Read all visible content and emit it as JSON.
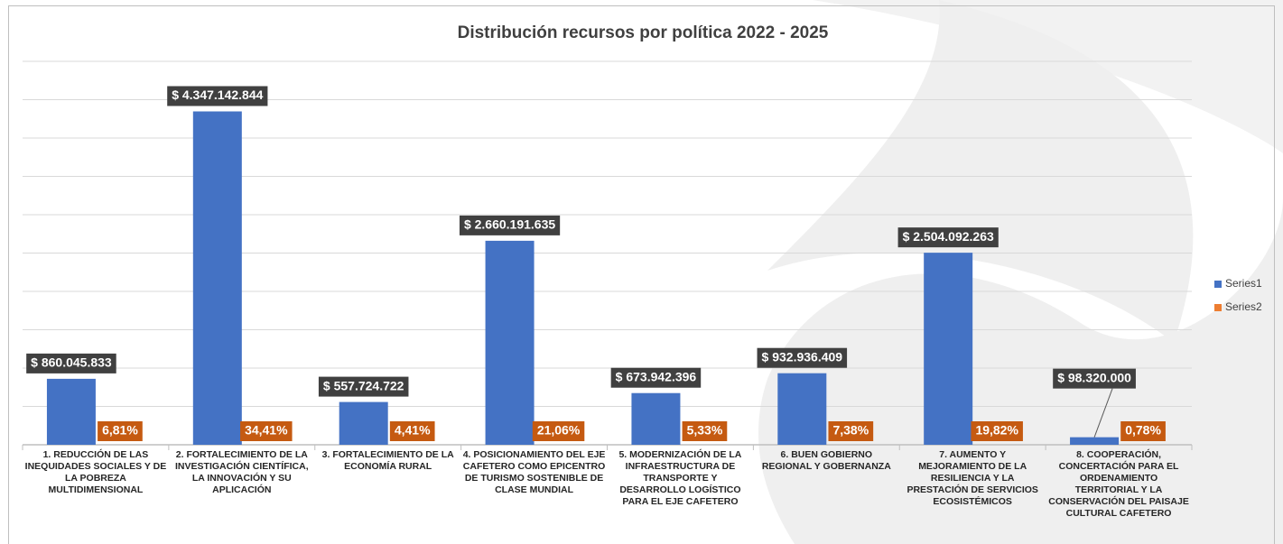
{
  "chart_data": {
    "type": "bar",
    "title": "Distribución recursos por política 2022 - 2025",
    "categories": [
      "1. REDUCCIÓN DE LAS INEQUIDADES SOCIALES Y DE LA POBREZA MULTIDIMENSIONAL",
      "2. FORTALECIMIENTO DE LA INVESTIGACIÓN CIENTÍFICA, LA INNOVACIÓN Y SU APLICACIÓN",
      "3. FORTALECIMIENTO DE LA ECONOMÍA RURAL",
      "4. POSICIONAMIENTO DEL EJE CAFETERO COMO EPICENTRO DE TURISMO SOSTENIBLE DE CLASE MUNDIAL",
      "5. MODERNIZACIÓN DE LA INFRAESTRUCTURA DE TRANSPORTE Y DESARROLLO LOGÍSTICO PARA EL EJE CAFETERO",
      "6. BUEN GOBIERNO REGIONAL Y GOBERNANZA",
      "7. AUMENTO Y MEJORAMIENTO DE LA RESILIENCIA Y LA PRESTACIÓN DE SERVICIOS ECOSISTÉMICOS",
      "8.  COOPERACIÓN, CONCERTACIÓN PARA EL ORDENAMIENTO TERRITORIAL Y LA CONSERVACIÓN DEL PAISAJE CULTURAL CAFETERO"
    ],
    "series": [
      {
        "name": "Series1",
        "color": "#4472c4",
        "values": [
          860045833,
          4347142844,
          557724722,
          2660191635,
          673942396,
          932936409,
          2504092263,
          98320000
        ],
        "value_labels": [
          "$ 860.045.833",
          "$ 4.347.142.844",
          "$ 557.724.722",
          "$ 2.660.191.635",
          "$ 673.942.396",
          "$ 932.936.409",
          "$ 2.504.092.263",
          "$ 98.320.000"
        ]
      },
      {
        "name": "Series2",
        "color": "#ed7d31",
        "values": [
          6.81,
          34.41,
          4.41,
          21.06,
          5.33,
          7.38,
          19.82,
          0.78
        ],
        "value_labels": [
          "6,81%",
          "34,41%",
          "4,41%",
          "21,06%",
          "5,33%",
          "7,38%",
          "19,82%",
          "0,78%"
        ]
      }
    ],
    "ylim": [
      0,
      5000000000
    ],
    "yticks": [
      0,
      500000000,
      1000000000,
      1500000000,
      2000000000,
      2500000000,
      3000000000,
      3500000000,
      4000000000,
      4500000000,
      5000000000
    ],
    "grid": true,
    "legend": "right"
  }
}
